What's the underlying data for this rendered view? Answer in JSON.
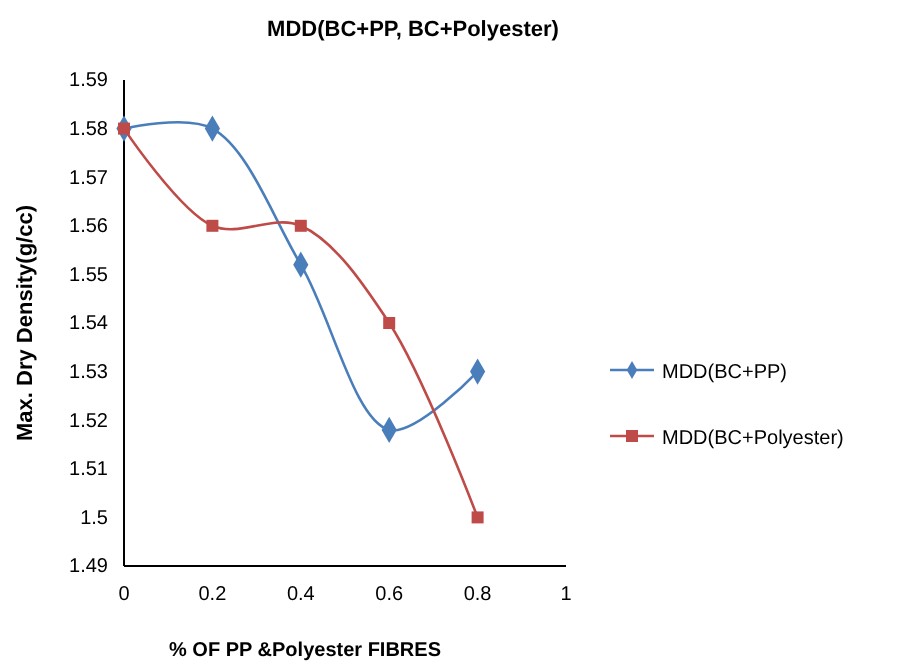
{
  "chart_data": {
    "type": "line",
    "title": "MDD(BC+PP, BC+Polyester)",
    "xlabel": "% OF PP &Polyester FIBRES",
    "ylabel": "Max. Dry Density(g/cc)",
    "x": [
      0,
      0.2,
      0.4,
      0.6,
      0.8
    ],
    "series": [
      {
        "name": "MDD(BC+PP)",
        "color": "#4a7ebb",
        "marker": "diamond",
        "values": [
          1.58,
          1.58,
          1.552,
          1.518,
          1.53
        ]
      },
      {
        "name": "MDD(BC+Polyester)",
        "color": "#be4b48",
        "marker": "square",
        "values": [
          1.58,
          1.56,
          1.56,
          1.54,
          1.5
        ]
      }
    ],
    "xlim": [
      0,
      1
    ],
    "xticks": [
      0,
      0.2,
      0.4,
      0.6,
      0.8,
      1
    ],
    "ylim": [
      1.49,
      1.59
    ],
    "yticks": [
      1.49,
      1.5,
      1.51,
      1.52,
      1.53,
      1.54,
      1.55,
      1.56,
      1.57,
      1.58,
      1.59
    ],
    "grid": false,
    "legend": "right"
  }
}
